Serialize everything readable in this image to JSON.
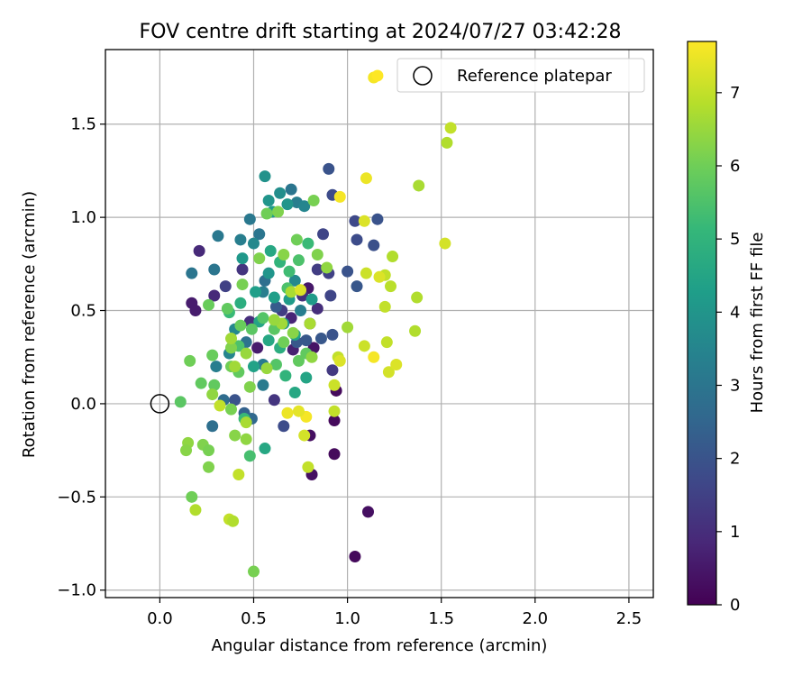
{
  "chart_data": {
    "type": "scatter",
    "title": "FOV centre drift starting at 2024/07/27 03:42:28",
    "xlabel": "Angular distance from reference (arcmin)",
    "ylabel": "Rotation from reference (arcmin)",
    "xlim": [
      -0.29,
      2.63
    ],
    "ylim": [
      -1.04,
      1.9
    ],
    "xticks": [
      "0.0",
      "0.5",
      "1.0",
      "1.5",
      "2.0",
      "2.5"
    ],
    "xtick_values": [
      0.0,
      0.5,
      1.0,
      1.5,
      2.0,
      2.5
    ],
    "yticks": [
      "−1.0",
      "−0.5",
      "0.0",
      "0.5",
      "1.0",
      "1.5"
    ],
    "ytick_values": [
      -1.0,
      -0.5,
      0.0,
      0.5,
      1.0,
      1.5
    ],
    "grid": true,
    "legend": {
      "label": "Reference platepar",
      "position": "top-right",
      "marker": "open-circle"
    },
    "reference_point": {
      "x": 0.0,
      "y": 0.0
    },
    "colorbar": {
      "label": "Hours from first FF file",
      "colormap": "viridis",
      "range": [
        0,
        7.7
      ],
      "ticks": [
        "0",
        "1",
        "2",
        "3",
        "4",
        "5",
        "6",
        "7"
      ],
      "tick_values": [
        0,
        1,
        2,
        3,
        4,
        5,
        6,
        7
      ]
    },
    "colormap_stops": [
      "#440154",
      "#482878",
      "#3e4989",
      "#31688e",
      "#26828e",
      "#1f9e89",
      "#35b779",
      "#6ece58",
      "#b5de2b",
      "#fde725"
    ],
    "points": [
      [
        0.21,
        0.82,
        0.9
      ],
      [
        0.17,
        0.54,
        0.6
      ],
      [
        0.19,
        0.5,
        0.6
      ],
      [
        0.29,
        0.58,
        0.9
      ],
      [
        0.8,
        0.43,
        0.2
      ],
      [
        0.79,
        0.62,
        0.5
      ],
      [
        0.82,
        0.3,
        0.4
      ],
      [
        0.94,
        0.07,
        0.2
      ],
      [
        0.93,
        -0.09,
        0.2
      ],
      [
        0.93,
        -0.27,
        0.2
      ],
      [
        0.8,
        -0.17,
        0.3
      ],
      [
        0.81,
        -0.38,
        0.3
      ],
      [
        1.11,
        -0.58,
        0.3
      ],
      [
        1.04,
        -0.82,
        0.2
      ],
      [
        0.84,
        0.51,
        1.0
      ],
      [
        0.44,
        0.72,
        1.2
      ],
      [
        0.76,
        0.58,
        1.1
      ],
      [
        0.92,
        0.18,
        1.3
      ],
      [
        0.65,
        0.5,
        1.4
      ],
      [
        0.61,
        0.02,
        1.2
      ],
      [
        0.48,
        0.44,
        1.0
      ],
      [
        0.35,
        0.63,
        1.5
      ],
      [
        0.52,
        0.3,
        0.6
      ],
      [
        0.71,
        0.29,
        0.7
      ],
      [
        0.7,
        0.46,
        0.8
      ],
      [
        0.9,
        1.26,
        2.0
      ],
      [
        0.92,
        1.12,
        1.8
      ],
      [
        0.87,
        0.91,
        1.6
      ],
      [
        1.04,
        0.98,
        1.7
      ],
      [
        1.16,
        0.99,
        2.0
      ],
      [
        1.05,
        0.88,
        1.8
      ],
      [
        1.14,
        0.85,
        1.9
      ],
      [
        1.0,
        0.71,
        2.0
      ],
      [
        1.05,
        0.63,
        2.1
      ],
      [
        0.9,
        0.7,
        1.5
      ],
      [
        0.84,
        0.72,
        1.4
      ],
      [
        0.91,
        0.58,
        1.6
      ],
      [
        0.92,
        0.37,
        2.0
      ],
      [
        0.73,
        0.33,
        2.1
      ],
      [
        0.78,
        0.34,
        2.1
      ],
      [
        0.86,
        0.35,
        2.1
      ],
      [
        0.66,
        -0.12,
        1.8
      ],
      [
        0.62,
        0.52,
        2.2
      ],
      [
        0.4,
        0.02,
        2.0
      ],
      [
        0.45,
        -0.05,
        2.4
      ],
      [
        0.49,
        -0.08,
        2.6
      ],
      [
        0.34,
        0.02,
        2.7
      ],
      [
        0.28,
        -0.12,
        2.8
      ],
      [
        0.17,
        0.7,
        3.0
      ],
      [
        0.29,
        0.72,
        3.0
      ],
      [
        0.31,
        0.9,
        3.1
      ],
      [
        0.48,
        0.99,
        3.1
      ],
      [
        0.53,
        0.91,
        3.0
      ],
      [
        0.7,
        1.15,
        3.0
      ],
      [
        0.73,
        1.08,
        3.3
      ],
      [
        0.77,
        1.06,
        3.5
      ],
      [
        0.55,
        0.6,
        3.3
      ],
      [
        0.43,
        0.88,
        3.3
      ],
      [
        0.5,
        0.86,
        3.6
      ],
      [
        0.64,
        1.13,
        3.8
      ],
      [
        0.68,
        1.07,
        4.0
      ],
      [
        0.56,
        1.22,
        3.9
      ],
      [
        0.58,
        1.09,
        4.0
      ],
      [
        0.6,
        1.03,
        4.2
      ],
      [
        0.3,
        0.2,
        3.3
      ],
      [
        0.37,
        0.27,
        3.5
      ],
      [
        0.4,
        0.4,
        3.6
      ],
      [
        0.55,
        0.21,
        3.2
      ],
      [
        0.55,
        0.1,
        3.2
      ],
      [
        0.46,
        0.33,
        2.9
      ],
      [
        0.56,
        0.66,
        2.8
      ],
      [
        0.72,
        0.66,
        3.6
      ],
      [
        0.75,
        0.5,
        3.3
      ],
      [
        0.44,
        0.78,
        4.1
      ],
      [
        0.51,
        0.6,
        4.3
      ],
      [
        0.58,
        0.7,
        4.0
      ],
      [
        0.61,
        0.57,
        4.3
      ],
      [
        0.69,
        0.56,
        4.2
      ],
      [
        0.66,
        0.43,
        4.0
      ],
      [
        0.81,
        0.56,
        4.2
      ],
      [
        0.78,
        0.14,
        4.5
      ],
      [
        0.72,
        0.06,
        4.6
      ],
      [
        0.56,
        -0.24,
        4.6
      ],
      [
        0.5,
        0.2,
        4.4
      ],
      [
        0.53,
        0.44,
        4.5
      ],
      [
        0.58,
        0.34,
        4.6
      ],
      [
        0.64,
        0.3,
        4.8
      ],
      [
        0.72,
        0.37,
        4.4
      ],
      [
        0.43,
        0.54,
        4.8
      ],
      [
        0.59,
        0.82,
        4.6
      ],
      [
        0.64,
        0.76,
        5.0
      ],
      [
        0.69,
        0.71,
        5.3
      ],
      [
        0.79,
        0.86,
        5.2
      ],
      [
        0.74,
        0.77,
        5.5
      ],
      [
        0.68,
        0.62,
        5.5
      ],
      [
        0.37,
        0.49,
        5.2
      ],
      [
        0.42,
        0.31,
        5.5
      ],
      [
        0.62,
        0.21,
        5.6
      ],
      [
        0.78,
        0.27,
        5.8
      ],
      [
        0.67,
        0.15,
        5.0
      ],
      [
        0.45,
        -0.08,
        5.2
      ],
      [
        0.48,
        -0.28,
        5.4
      ],
      [
        0.26,
        0.53,
        5.9
      ],
      [
        0.36,
        0.51,
        5.8
      ],
      [
        0.43,
        0.42,
        5.9
      ],
      [
        0.49,
        0.4,
        5.7
      ],
      [
        0.55,
        0.46,
        5.6
      ],
      [
        0.61,
        0.4,
        5.7
      ],
      [
        0.66,
        0.33,
        6.0
      ],
      [
        0.74,
        0.23,
        5.8
      ],
      [
        0.28,
        0.26,
        5.9
      ],
      [
        0.38,
        0.2,
        6.0
      ],
      [
        0.42,
        0.17,
        5.8
      ],
      [
        0.29,
        0.1,
        5.8
      ],
      [
        0.22,
        0.11,
        5.8
      ],
      [
        0.11,
        0.01,
        5.7
      ],
      [
        0.16,
        0.23,
        6.0
      ],
      [
        0.57,
        1.02,
        6.0
      ],
      [
        0.63,
        1.03,
        6.2
      ],
      [
        0.82,
        1.09,
        6.1
      ],
      [
        0.73,
        0.88,
        6.0
      ],
      [
        0.84,
        0.8,
        6.2
      ],
      [
        0.66,
        0.8,
        6.3
      ],
      [
        0.53,
        0.78,
        6.2
      ],
      [
        0.44,
        0.64,
        6.1
      ],
      [
        0.38,
        0.3,
        6.2
      ],
      [
        0.46,
        0.27,
        6.5
      ],
      [
        0.71,
        0.38,
        6.3
      ],
      [
        0.65,
        0.43,
        6.6
      ],
      [
        0.81,
        0.25,
        6.4
      ],
      [
        0.57,
        0.19,
        6.5
      ],
      [
        0.48,
        0.09,
        6.2
      ],
      [
        0.38,
        -0.03,
        6.1
      ],
      [
        0.4,
        -0.17,
        6.3
      ],
      [
        0.46,
        -0.19,
        6.4
      ],
      [
        0.23,
        -0.22,
        6.2
      ],
      [
        0.26,
        -0.25,
        6.1
      ],
      [
        0.15,
        -0.21,
        6.4
      ],
      [
        0.14,
        -0.25,
        6.3
      ],
      [
        0.26,
        -0.34,
        6.2
      ],
      [
        0.17,
        -0.5,
        6.0
      ],
      [
        0.5,
        -0.9,
        6.1
      ],
      [
        0.89,
        0.73,
        6.4
      ],
      [
        1.0,
        0.41,
        6.6
      ],
      [
        0.8,
        0.43,
        6.7
      ],
      [
        0.28,
        0.05,
        6.4
      ],
      [
        0.46,
        -0.1,
        6.7
      ],
      [
        0.4,
        0.2,
        6.6
      ],
      [
        0.61,
        0.45,
        6.5
      ],
      [
        0.7,
        0.6,
        6.7
      ],
      [
        0.38,
        0.35,
        6.6
      ],
      [
        1.38,
        1.17,
        6.7
      ],
      [
        1.53,
        1.4,
        6.8
      ],
      [
        1.55,
        1.48,
        7.0
      ],
      [
        1.52,
        0.86,
        7.2
      ],
      [
        1.37,
        0.57,
        6.8
      ],
      [
        1.36,
        0.39,
        6.8
      ],
      [
        1.24,
        0.79,
        6.8
      ],
      [
        1.23,
        0.63,
        6.9
      ],
      [
        1.2,
        0.69,
        7.0
      ],
      [
        1.17,
        0.68,
        7.3
      ],
      [
        1.1,
        0.7,
        7.1
      ],
      [
        1.2,
        0.52,
        7.0
      ],
      [
        1.21,
        0.33,
        7.0
      ],
      [
        1.22,
        0.17,
        7.2
      ],
      [
        1.26,
        0.21,
        7.3
      ],
      [
        1.14,
        0.25,
        7.6
      ],
      [
        1.09,
        0.31,
        7.1
      ],
      [
        1.09,
        0.98,
        7.3
      ],
      [
        0.96,
        1.11,
        7.6
      ],
      [
        1.1,
        1.21,
        7.5
      ],
      [
        1.14,
        1.75,
        7.6
      ],
      [
        1.16,
        1.76,
        7.7
      ],
      [
        0.95,
        0.25,
        7.0
      ],
      [
        0.96,
        0.23,
        7.3
      ],
      [
        0.78,
        -0.07,
        7.6
      ],
      [
        0.68,
        -0.05,
        7.5
      ],
      [
        0.74,
        -0.04,
        7.4
      ],
      [
        0.93,
        -0.04,
        7.0
      ],
      [
        0.79,
        -0.34,
        7.0
      ],
      [
        0.93,
        0.1,
        7.1
      ],
      [
        0.32,
        -0.01,
        7.0
      ],
      [
        0.42,
        -0.38,
        7.0
      ],
      [
        0.37,
        -0.62,
        7.0
      ],
      [
        0.39,
        -0.63,
        6.8
      ],
      [
        0.19,
        -0.57,
        6.8
      ],
      [
        0.75,
        0.61,
        7.3
      ],
      [
        0.77,
        -0.17,
        7.2
      ]
    ]
  }
}
